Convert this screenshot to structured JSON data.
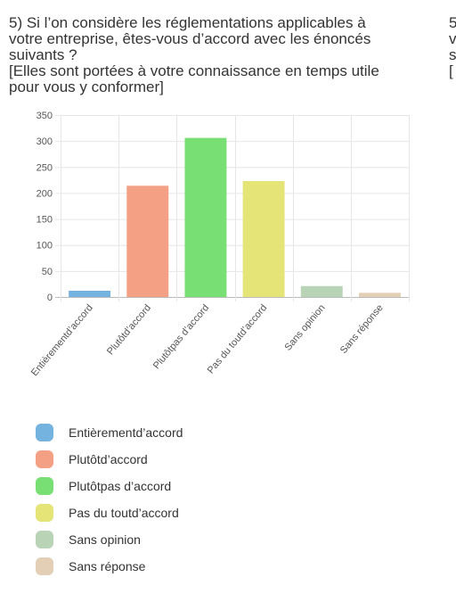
{
  "question": {
    "lines": [
      "5) Si l’on considère les réglementations applicables à",
      "votre entreprise, êtes-vous d’accord avec les énoncés",
      "suivants ?",
      "[Elles sont portées à votre connaissance en temps utile",
      "pour vous y conformer]"
    ]
  },
  "next_panel_peek": [
    "5",
    "v",
    "s",
    "["
  ],
  "chart_data": {
    "type": "bar",
    "categories": [
      "Entièrementd’accord",
      "Plutôtd’accord",
      "Plutôtpas d’accord",
      "Pas du toutd’accord",
      "Sans opinion",
      "Sans réponse"
    ],
    "values": [
      12,
      214,
      306,
      223,
      21,
      8
    ],
    "colors": [
      "#74b3e0",
      "#f3a085",
      "#78df74",
      "#e4e477",
      "#b9d3b6",
      "#e2cfb5"
    ],
    "ylim": [
      0,
      350
    ],
    "yticks": [
      0,
      50,
      100,
      150,
      200,
      250,
      300,
      350
    ],
    "grid": true,
    "legend_position": "bottom"
  },
  "legend": {
    "items": [
      {
        "label": "Entièrementd’accord",
        "color": "#74b3e0"
      },
      {
        "label": "Plutôtd’accord",
        "color": "#f3a085"
      },
      {
        "label": "Plutôtpas d’accord",
        "color": "#78df74"
      },
      {
        "label": "Pas du toutd’accord",
        "color": "#e4e477"
      },
      {
        "label": "Sans opinion",
        "color": "#b9d3b6"
      },
      {
        "label": "Sans réponse",
        "color": "#e2cfb5"
      }
    ]
  }
}
